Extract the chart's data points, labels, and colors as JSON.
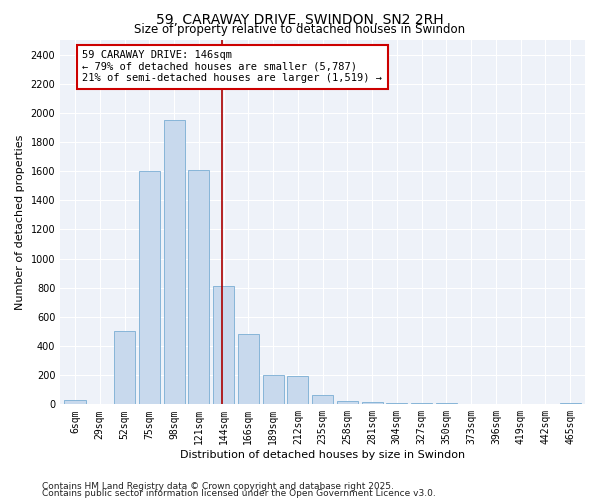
{
  "title": "59, CARAWAY DRIVE, SWINDON, SN2 2RH",
  "subtitle": "Size of property relative to detached houses in Swindon",
  "xlabel": "Distribution of detached houses by size in Swindon",
  "ylabel": "Number of detached properties",
  "categories": [
    "6sqm",
    "29sqm",
    "52sqm",
    "75sqm",
    "98sqm",
    "121sqm",
    "144sqm",
    "166sqm",
    "189sqm",
    "212sqm",
    "235sqm",
    "258sqm",
    "281sqm",
    "304sqm",
    "327sqm",
    "350sqm",
    "373sqm",
    "396sqm",
    "419sqm",
    "442sqm",
    "465sqm"
  ],
  "values": [
    30,
    5,
    500,
    1600,
    1950,
    1610,
    810,
    480,
    200,
    195,
    65,
    25,
    15,
    12,
    10,
    8,
    5,
    3,
    2,
    1,
    10
  ],
  "bar_color": "#c8d9ed",
  "bar_edge_color": "#7aadd4",
  "vline_x_index": 6,
  "vline_color": "#aa0000",
  "annotation_line1": "59 CARAWAY DRIVE: 146sqm",
  "annotation_line2": "← 79% of detached houses are smaller (5,787)",
  "annotation_line3": "21% of semi-detached houses are larger (1,519) →",
  "annotation_box_color": "#ffffff",
  "annotation_box_edge": "#cc0000",
  "ylim": [
    0,
    2500
  ],
  "yticks": [
    0,
    200,
    400,
    600,
    800,
    1000,
    1200,
    1400,
    1600,
    1800,
    2000,
    2200,
    2400
  ],
  "background_color": "#eef2f9",
  "footer1": "Contains HM Land Registry data © Crown copyright and database right 2025.",
  "footer2": "Contains public sector information licensed under the Open Government Licence v3.0.",
  "title_fontsize": 10,
  "subtitle_fontsize": 8.5,
  "xlabel_fontsize": 8,
  "ylabel_fontsize": 8,
  "tick_fontsize": 7,
  "annotation_fontsize": 7.5,
  "footer_fontsize": 6.5
}
